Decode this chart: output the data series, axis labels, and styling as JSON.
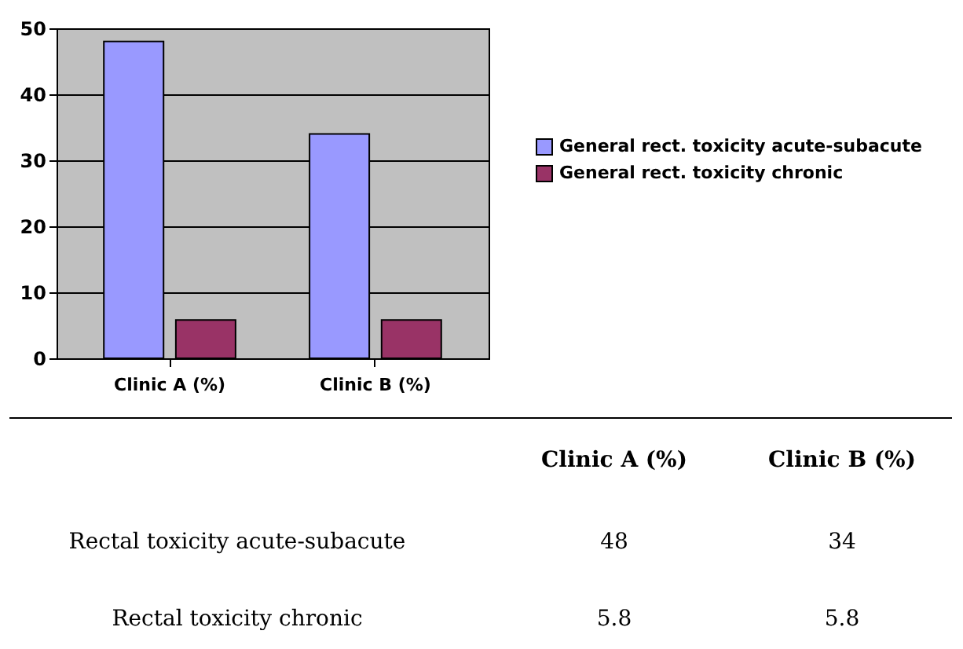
{
  "chart_data": {
    "type": "bar",
    "categories": [
      "Clinic A (%)",
      "Clinic B (%)"
    ],
    "series": [
      {
        "name": "General rect. toxicity acute-subacute",
        "color": "#9999ff",
        "values": [
          48,
          34
        ]
      },
      {
        "name": "General rect. toxicity chronic",
        "color": "#993366",
        "values": [
          5.8,
          5.8
        ]
      }
    ],
    "ylim": [
      0,
      50
    ],
    "yticks": [
      0,
      10,
      20,
      30,
      40,
      50
    ],
    "grid": "y",
    "legend": "right",
    "annotations": [
      "Rectal toxicity acute-subacute",
      "48",
      "34",
      "Rectal toxicity chronic",
      "5.8",
      "5.8"
    ]
  }
}
